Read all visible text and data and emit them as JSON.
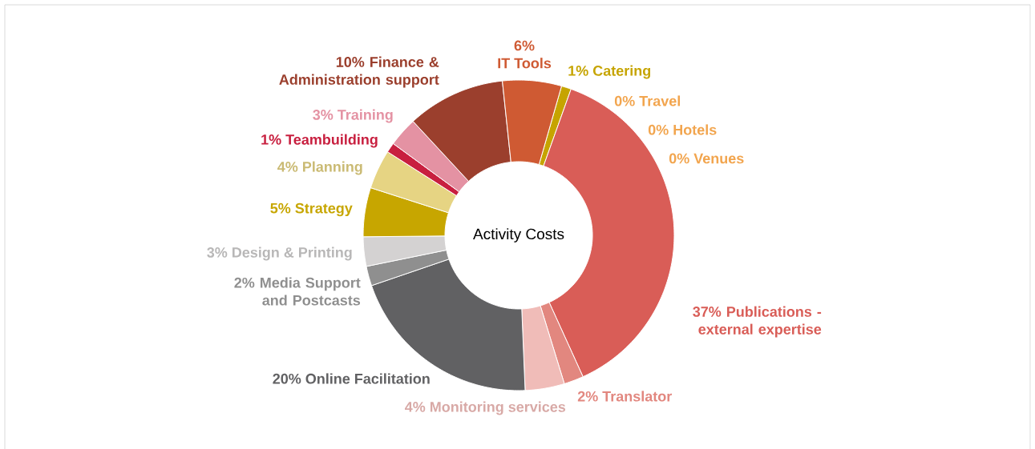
{
  "chart_data": {
    "type": "donut",
    "title": "Activity Costs",
    "categories": [
      "Catering",
      "Travel",
      "Hotels",
      "Venues",
      "Publications - external expertise",
      "Translator",
      "Monitoring services",
      "Online Facilitation",
      "Media Support and Postcasts",
      "Design & Printing",
      "Strategy",
      "Planning",
      "Teambuilding",
      "Training",
      "Finance & Administration support",
      "IT Tools"
    ],
    "values": [
      1,
      0,
      0,
      0,
      37,
      2,
      4,
      20,
      2,
      3,
      5,
      4,
      1,
      3,
      10,
      6
    ],
    "value_labels": [
      "1%",
      "0%",
      "0%",
      "0%",
      "37%",
      "2%",
      "4%",
      "20%",
      "2%",
      "3%",
      "5%",
      "4%",
      "1%",
      "3%",
      "10%",
      "6%"
    ],
    "colors": [
      "#c6a400",
      "#f2a54e",
      "#f2a54e",
      "#f2a54e",
      "#d95d57",
      "#e2877f",
      "#f0bcb8",
      "#616163",
      "#8f8f8f",
      "#d4d2d2",
      "#c7a600",
      "#e6d483",
      "#c81f3f",
      "#e492a3",
      "#9b3f2d",
      "#cf5a33"
    ]
  }
}
